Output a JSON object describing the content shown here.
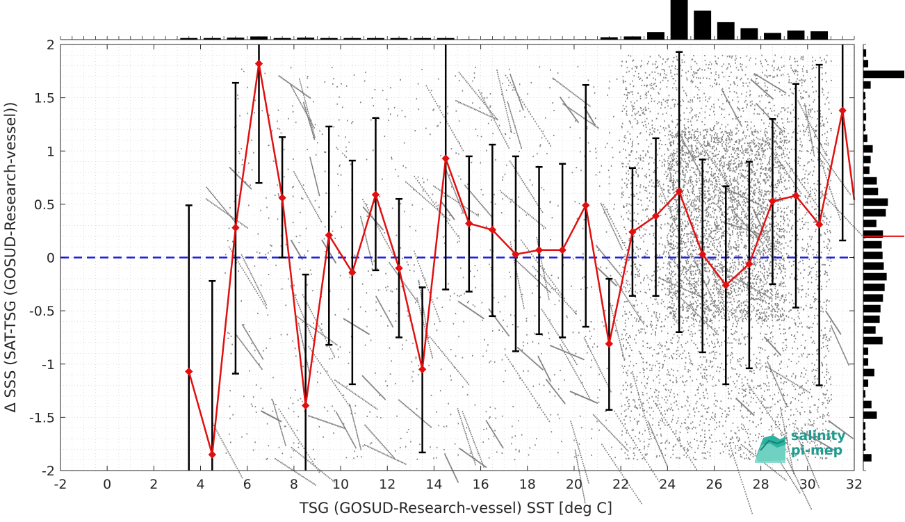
{
  "chart_data": {
    "type": "scatter",
    "xlabel": "TSG (GOSUD-Research-vessel) SST [deg C]",
    "ylabel": "Δ SSS (SAT-TSG (GOSUD-Research-vessel))",
    "xlim": [
      -2,
      32
    ],
    "ylim": [
      -2,
      2
    ],
    "xticks": [
      "-2",
      "0",
      "2",
      "4",
      "6",
      "8",
      "10",
      "12",
      "14",
      "16",
      "18",
      "20",
      "22",
      "24",
      "26",
      "28",
      "30",
      "32"
    ],
    "yticks": [
      "2",
      "1.5",
      "1",
      "0.5",
      "0",
      "-0.5",
      "-1",
      "-1.5",
      "-2"
    ],
    "grid": true,
    "reference_line": {
      "y": 0,
      "style": "dashed",
      "color": "#1f1fe0"
    },
    "series": [
      {
        "type": "line-with-errorbars",
        "color": "#e01010",
        "marker": "diamond",
        "x": [
          3.5,
          4.5,
          5.5,
          6.5,
          7.5,
          8.5,
          9.5,
          10.5,
          11.5,
          12.5,
          13.5,
          14.5,
          15.5,
          16.5,
          17.5,
          18.5,
          19.5,
          20.5,
          21.5,
          22.5,
          23.5,
          24.5,
          25.5,
          26.5,
          27.5,
          28.5,
          29.5,
          30.5,
          31.5,
          32.0
        ],
        "y": [
          -1.07,
          -1.85,
          0.28,
          1.82,
          0.56,
          -1.39,
          0.21,
          -0.14,
          0.59,
          -0.1,
          -1.05,
          0.93,
          0.32,
          0.26,
          0.03,
          0.07,
          0.07,
          0.49,
          -0.81,
          0.24,
          0.39,
          0.62,
          0.03,
          -0.26,
          -0.06,
          0.53,
          0.58,
          0.31,
          1.38,
          0.54
        ],
        "err_low": [
          -2.0,
          -2.0,
          -1.09,
          0.7,
          0.0,
          -2.0,
          -0.82,
          -1.19,
          -0.12,
          -0.75,
          -1.83,
          -0.3,
          -0.32,
          -0.55,
          -0.88,
          -0.72,
          -0.75,
          -0.65,
          -1.43,
          -0.36,
          -0.36,
          -0.7,
          -0.89,
          -1.19,
          -1.04,
          -0.25,
          -0.47,
          -1.2,
          0.16,
          null
        ],
        "err_high": [
          0.49,
          -0.22,
          1.64,
          2.0,
          1.13,
          -0.16,
          1.23,
          0.91,
          1.31,
          0.55,
          -0.28,
          2.0,
          0.95,
          1.06,
          0.95,
          0.85,
          0.88,
          1.62,
          -0.2,
          0.84,
          1.12,
          1.93,
          0.92,
          0.67,
          0.9,
          1.3,
          1.63,
          1.81,
          2.0,
          null
        ]
      }
    ],
    "scatter_note": "dense grey point cloud of individual match-ups",
    "scatter_color": "#808080",
    "top_histogram": {
      "bins_x": [
        3.5,
        4.5,
        5.5,
        6.5,
        7.5,
        8.5,
        9.5,
        10.5,
        11.5,
        12.5,
        13.5,
        14.5,
        15.5,
        16.5,
        17.5,
        18.5,
        19.5,
        20.5,
        21.5,
        22.5,
        23.5,
        24.5,
        25.5,
        26.5,
        27.5,
        28.5,
        29.5,
        30.5
      ],
      "counts": [
        0.04,
        0.04,
        0.05,
        0.08,
        0.04,
        0.05,
        0.04,
        0.04,
        0.04,
        0.04,
        0.04,
        0.04,
        0.01,
        0.01,
        0.01,
        0.01,
        0.01,
        0.01,
        0.06,
        0.08,
        0.19,
        1.0,
        0.73,
        0.44,
        0.29,
        0.17,
        0.23,
        0.21
      ]
    },
    "right_histogram": {
      "bins_y": [
        1.92,
        1.82,
        1.72,
        1.62,
        1.52,
        1.42,
        1.32,
        1.22,
        1.12,
        1.02,
        0.92,
        0.82,
        0.72,
        0.62,
        0.52,
        0.42,
        0.32,
        0.22,
        0.12,
        0.02,
        -0.08,
        -0.18,
        -0.28,
        -0.38,
        -0.48,
        -0.58,
        -0.68,
        -0.78,
        -0.88,
        -0.98,
        -1.08,
        -1.18,
        -1.28,
        -1.38,
        -1.48,
        -1.58,
        -1.68,
        -1.78,
        -1.88
      ],
      "counts": [
        0.07,
        0.12,
        1.0,
        0.18,
        0.05,
        0.05,
        0.07,
        0.05,
        0.1,
        0.23,
        0.18,
        0.15,
        0.33,
        0.36,
        0.6,
        0.55,
        0.32,
        0.48,
        0.45,
        0.47,
        0.5,
        0.57,
        0.52,
        0.48,
        0.42,
        0.4,
        0.3,
        0.47,
        0.12,
        0.12,
        0.27,
        0.12,
        0.05,
        0.2,
        0.33,
        0.05,
        0.05,
        0.05,
        0.2
      ]
    },
    "median_marker_y": 0.2
  },
  "logo": {
    "line1": "salinity",
    "line2": "pi-mep"
  }
}
